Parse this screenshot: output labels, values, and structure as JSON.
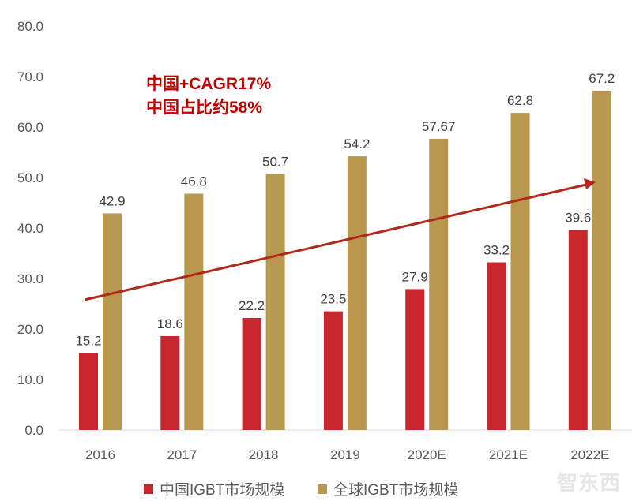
{
  "chart_data": {
    "type": "bar",
    "categories": [
      "2016",
      "2017",
      "2018",
      "2019",
      "2020E",
      "2021E",
      "2022E"
    ],
    "series": [
      {
        "name": "中国IGBT市场规模",
        "color": "#c8272d",
        "values": [
          15.2,
          18.6,
          22.2,
          23.5,
          27.9,
          33.2,
          39.6
        ],
        "labels": [
          "15.2",
          "18.6",
          "22.2",
          "23.5",
          "27.9",
          "33.2",
          "39.6"
        ]
      },
      {
        "name": "全球IGBT市场规模",
        "color": "#b7984e",
        "values": [
          42.9,
          46.8,
          50.7,
          54.2,
          57.67,
          62.8,
          67.2
        ],
        "labels": [
          "42.9",
          "46.8",
          "50.7",
          "54.2",
          "57.67",
          "62.8",
          "67.2"
        ]
      }
    ],
    "yticks": [
      "0.0",
      "10.0",
      "20.0",
      "30.0",
      "40.0",
      "50.0",
      "60.0",
      "70.0",
      "80.0"
    ],
    "ylim": [
      0,
      80
    ],
    "grid": false,
    "legend_position": "bottom",
    "annotation": {
      "line1": "中国+CAGR17%",
      "line2": "中国占比约58%",
      "color": "#c00000",
      "arrow_color": "#b2281b"
    },
    "title": "",
    "xlabel": "",
    "ylabel": ""
  },
  "watermark": "智东西"
}
